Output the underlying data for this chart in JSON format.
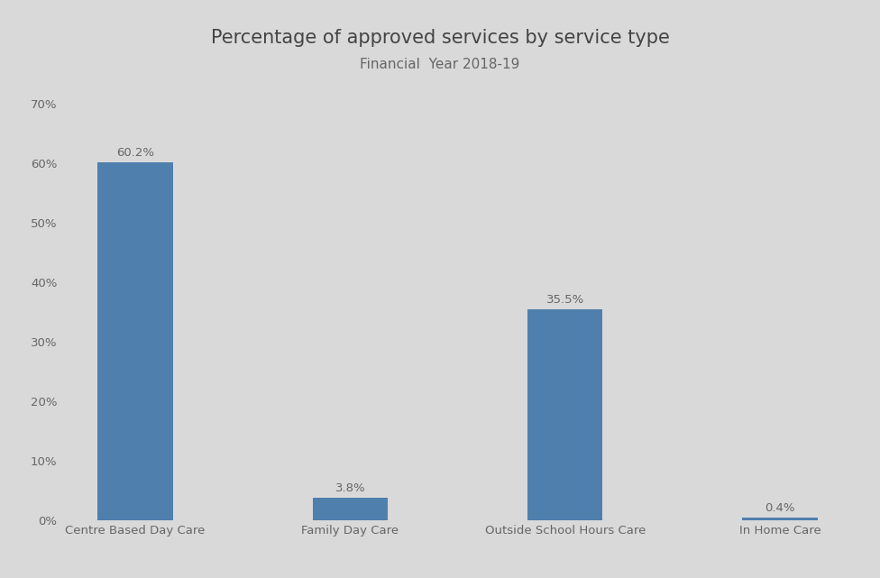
{
  "title": "Percentage of approved services by service type",
  "subtitle": "Financial  Year 2018-19",
  "categories": [
    "Centre Based Day Care",
    "Family Day Care",
    "Outside School Hours Care",
    "In Home Care"
  ],
  "values": [
    60.2,
    3.8,
    35.5,
    0.4
  ],
  "bar_color": "#4f7fad",
  "background_color": "#d9d9d9",
  "title_fontsize": 15,
  "subtitle_fontsize": 11,
  "label_fontsize": 9.5,
  "tick_fontsize": 9.5,
  "ylim": [
    0,
    70
  ],
  "yticks": [
    0,
    10,
    20,
    30,
    40,
    50,
    60,
    70
  ],
  "bar_width": 0.35
}
